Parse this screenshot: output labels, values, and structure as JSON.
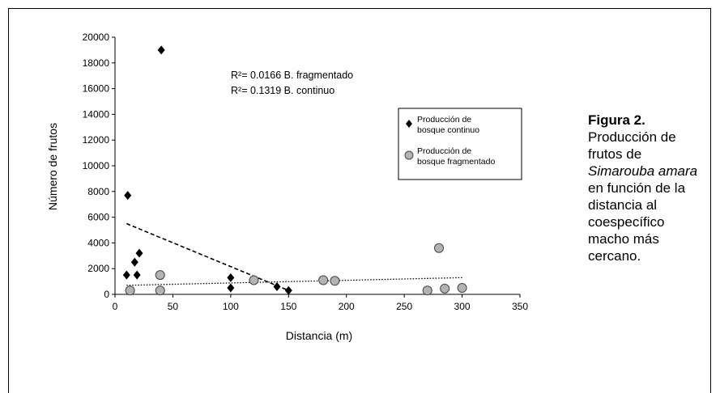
{
  "chart_data": {
    "type": "scatter",
    "xlabel": "Distancia (m)",
    "ylabel": "Número de frutos",
    "xlim": [
      0,
      350
    ],
    "ylim": [
      0,
      20000
    ],
    "x_ticks": [
      0,
      50,
      100,
      150,
      200,
      250,
      300,
      350
    ],
    "y_ticks": [
      0,
      2000,
      4000,
      6000,
      8000,
      10000,
      12000,
      14000,
      16000,
      18000,
      20000
    ],
    "grid": false,
    "legend_position": "right",
    "annotations": [
      "R²= 0.0166 B. fragmentado",
      "R²= 0.1319 B. continuo"
    ],
    "series": [
      {
        "name": "Producción de bosque continuo",
        "marker": "diamond",
        "color": "#000000",
        "points": [
          {
            "x": 10,
            "y": 1500
          },
          {
            "x": 11,
            "y": 7700
          },
          {
            "x": 17,
            "y": 2500
          },
          {
            "x": 19,
            "y": 1500
          },
          {
            "x": 21,
            "y": 3200
          },
          {
            "x": 40,
            "y": 19000
          },
          {
            "x": 100,
            "y": 1300
          },
          {
            "x": 100,
            "y": 500
          },
          {
            "x": 140,
            "y": 600
          },
          {
            "x": 150,
            "y": 300
          }
        ],
        "trend": {
          "style": "dashed",
          "x": [
            10,
            150
          ],
          "y": [
            5500,
            300
          ]
        }
      },
      {
        "name": "Producción de bosque fragmentado",
        "marker": "circle",
        "color": "#b3b3b3",
        "points": [
          {
            "x": 13,
            "y": 300
          },
          {
            "x": 39,
            "y": 300
          },
          {
            "x": 39,
            "y": 1500
          },
          {
            "x": 120,
            "y": 1100
          },
          {
            "x": 180,
            "y": 1100
          },
          {
            "x": 190,
            "y": 1050
          },
          {
            "x": 270,
            "y": 300
          },
          {
            "x": 280,
            "y": 3600
          },
          {
            "x": 285,
            "y": 450
          },
          {
            "x": 300,
            "y": 500
          }
        ],
        "trend": {
          "style": "dotted",
          "x": [
            10,
            300
          ],
          "y": [
            700,
            1300
          ]
        }
      }
    ]
  },
  "caption": {
    "title": "Figura 2.",
    "line1": "Producción de frutos de",
    "species": "Simarouba amara",
    "line2": "en función de la distancia al coespecífico macho más cercano."
  }
}
